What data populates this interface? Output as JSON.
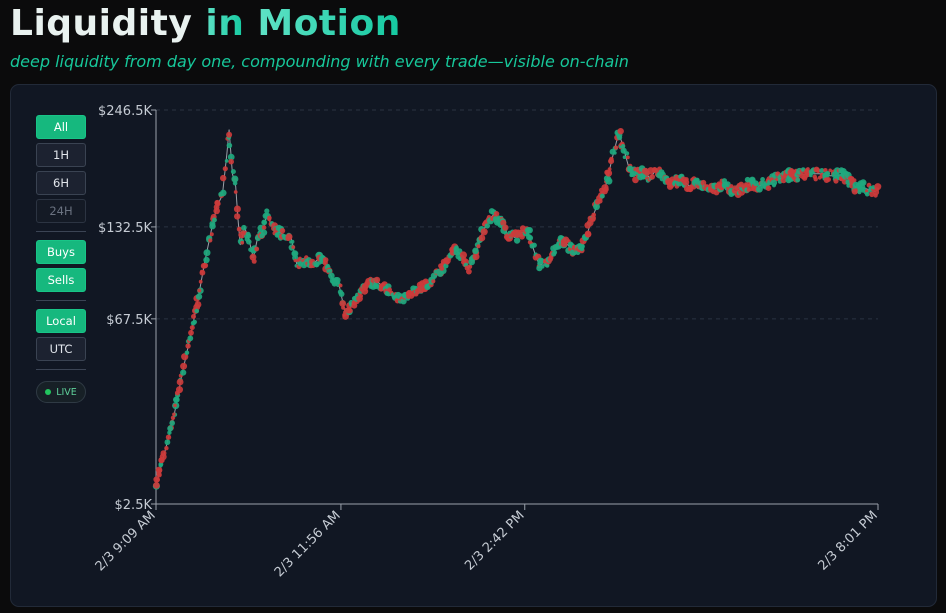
{
  "header": {
    "title_part1": "Liquidity",
    "title_part2": "in",
    "title_part3": "Motion",
    "subtitle": "deep liquidity from day one, compounding with every trade—visible on-chain"
  },
  "controls": {
    "range_buttons": [
      {
        "label": "All",
        "state": "active"
      },
      {
        "label": "1H",
        "state": "normal"
      },
      {
        "label": "6H",
        "state": "normal"
      },
      {
        "label": "24H",
        "state": "disabled"
      }
    ],
    "side_buttons": [
      {
        "label": "Buys",
        "state": "active"
      },
      {
        "label": "Sells",
        "state": "active"
      }
    ],
    "tz_buttons": [
      {
        "label": "Local",
        "state": "active"
      },
      {
        "label": "UTC",
        "state": "normal"
      }
    ],
    "live_label": "LIVE"
  },
  "colors": {
    "buy": "#1fa87e",
    "sell": "#cc3b3b",
    "line": "#b4b9c0",
    "accent": "#14c9a0"
  },
  "chart_data": {
    "type": "scatter",
    "y_scale": "sqrt",
    "ylim": [
      2500,
      246500
    ],
    "y_ticks": [
      {
        "value": 2500,
        "label": "$2.5K"
      },
      {
        "value": 67500,
        "label": "$67.5K"
      },
      {
        "value": 132500,
        "label": "$132.5K"
      },
      {
        "value": 246500,
        "label": "$246.5K"
      }
    ],
    "x_range_minutes": [
      0,
      652
    ],
    "x_ticks": [
      {
        "minute": 0,
        "label": "2/3 9:09 AM"
      },
      {
        "minute": 167,
        "label": "2/3 11:56 AM"
      },
      {
        "minute": 333,
        "label": "2/3 2:42 PM"
      },
      {
        "minute": 652,
        "label": "2/3 8:01 PM"
      }
    ],
    "grid": true,
    "legend": "none",
    "series": [
      {
        "name": "",
        "kind": "line",
        "points": [
          [
            0,
            5000
          ],
          [
            8,
            12000
          ],
          [
            16,
            22000
          ],
          [
            24,
            40000
          ],
          [
            32,
            60000
          ],
          [
            38,
            80000
          ],
          [
            44,
            105000
          ],
          [
            50,
            130000
          ],
          [
            55,
            150000
          ],
          [
            60,
            160000
          ],
          [
            64,
            200000
          ],
          [
            66,
            225000
          ],
          [
            69,
            180000
          ],
          [
            72,
            168000
          ],
          [
            74,
            140000
          ],
          [
            76,
            118000
          ],
          [
            80,
            132000
          ],
          [
            84,
            122000
          ],
          [
            88,
            108000
          ],
          [
            92,
            125000
          ],
          [
            96,
            128000
          ],
          [
            100,
            142000
          ],
          [
            104,
            135000
          ],
          [
            108,
            128000
          ],
          [
            112,
            128000
          ],
          [
            116,
            126000
          ],
          [
            122,
            124000
          ],
          [
            127,
            104000
          ],
          [
            134,
            106000
          ],
          [
            140,
            103000
          ],
          [
            148,
            108000
          ],
          [
            154,
            103000
          ],
          [
            160,
            92000
          ],
          [
            165,
            90000
          ],
          [
            168,
            80000
          ],
          [
            171,
            70000
          ],
          [
            176,
            75000
          ],
          [
            184,
            82000
          ],
          [
            192,
            90000
          ],
          [
            200,
            91000
          ],
          [
            208,
            86000
          ],
          [
            216,
            81000
          ],
          [
            224,
            80000
          ],
          [
            232,
            84000
          ],
          [
            240,
            87000
          ],
          [
            248,
            91000
          ],
          [
            256,
            98000
          ],
          [
            264,
            107000
          ],
          [
            270,
            115000
          ],
          [
            276,
            110000
          ],
          [
            282,
            100000
          ],
          [
            288,
            110000
          ],
          [
            294,
            126000
          ],
          [
            300,
            138000
          ],
          [
            306,
            144000
          ],
          [
            312,
            136000
          ],
          [
            318,
            126000
          ],
          [
            324,
            124000
          ],
          [
            330,
            128000
          ],
          [
            336,
            128000
          ],
          [
            342,
            112000
          ],
          [
            346,
            103000
          ],
          [
            352,
            103000
          ],
          [
            358,
            110000
          ],
          [
            364,
            122000
          ],
          [
            370,
            120000
          ],
          [
            376,
            114000
          ],
          [
            382,
            114000
          ],
          [
            388,
            123000
          ],
          [
            394,
            140000
          ],
          [
            400,
            155000
          ],
          [
            406,
            168000
          ],
          [
            412,
            195000
          ],
          [
            418,
            222000
          ],
          [
            423,
            202000
          ],
          [
            428,
            182000
          ],
          [
            434,
            178000
          ],
          [
            440,
            182000
          ],
          [
            446,
            176000
          ],
          [
            452,
            184000
          ],
          [
            458,
            176000
          ],
          [
            464,
            170000
          ],
          [
            470,
            173000
          ],
          [
            476,
            174000
          ],
          [
            482,
            168000
          ],
          [
            488,
            172000
          ],
          [
            494,
            169000
          ],
          [
            500,
            166000
          ],
          [
            506,
            166000
          ],
          [
            512,
            170000
          ],
          [
            518,
            165000
          ],
          [
            524,
            163000
          ],
          [
            530,
            167000
          ],
          [
            536,
            170000
          ],
          [
            542,
            167000
          ],
          [
            548,
            170000
          ],
          [
            554,
            171000
          ],
          [
            560,
            174000
          ],
          [
            566,
            176000
          ],
          [
            572,
            178000
          ],
          [
            578,
            178000
          ],
          [
            584,
            179000
          ],
          [
            590,
            180000
          ],
          [
            596,
            180000
          ],
          [
            602,
            180000
          ],
          [
            608,
            178000
          ],
          [
            614,
            178000
          ],
          [
            620,
            179000
          ],
          [
            626,
            174000
          ],
          [
            632,
            167000
          ],
          [
            638,
            167000
          ],
          [
            644,
            165000
          ],
          [
            650,
            163000
          ]
        ]
      },
      {
        "name": "",
        "kind": "points",
        "side": "buy"
      },
      {
        "name": "",
        "kind": "points",
        "side": "sell"
      }
    ]
  }
}
